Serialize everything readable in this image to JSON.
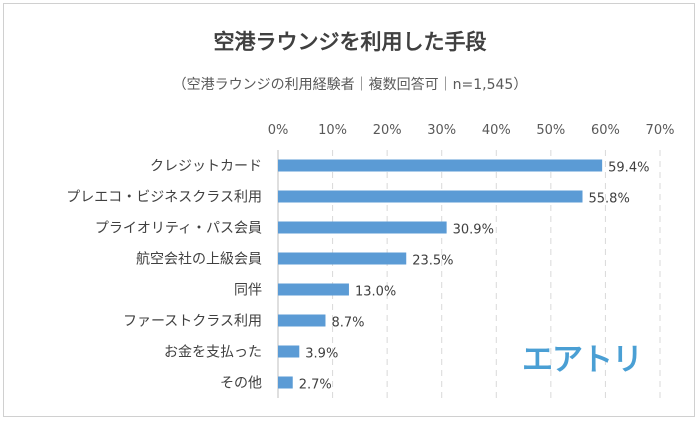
{
  "chart_data": {
    "type": "bar",
    "orientation": "horizontal",
    "title": "空港ラウンジを利用した手段",
    "subtitle": "（空港ラウンジの利用経験者｜複数回答可｜n=1,545）",
    "categories": [
      "クレジットカード",
      "プレエコ・ビジネスクラス利用",
      "プライオリティ・パス会員",
      "航空会社の上級会員",
      "同伴",
      "ファーストクラス利用",
      "お金を支払った",
      "その他"
    ],
    "values": [
      59.4,
      55.8,
      30.9,
      23.5,
      13.0,
      8.7,
      3.9,
      2.7
    ],
    "data_labels": [
      "59.4%",
      "55.8%",
      "30.9%",
      "23.5%",
      "13.0%",
      "8.7%",
      "3.9%",
      "2.7%"
    ],
    "xlim": [
      0,
      70
    ],
    "x_ticks": [
      "0%",
      "10%",
      "20%",
      "30%",
      "40%",
      "50%",
      "60%",
      "70%"
    ],
    "x_axis_position": "top",
    "grid": "vertical dashed",
    "bar_color": "#5b9bd5"
  },
  "logo": {
    "text": "エアトリ",
    "color": "#4a9fd4"
  }
}
